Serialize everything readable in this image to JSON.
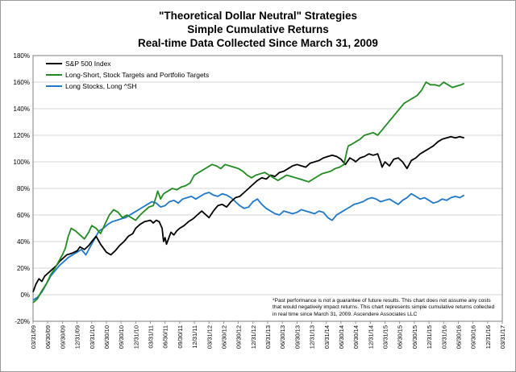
{
  "chart_data": {
    "type": "line",
    "title": "\"Theoretical Dollar Neutral\" Strategies",
    "subtitle_1": "Simple Cumulative Returns",
    "subtitle_2": "Real-time Data Collected Since March 31, 2009",
    "y_tick_labels": [
      "180%",
      "160%",
      "140%",
      "120%",
      "100%",
      "80%",
      "60%",
      "40%",
      "20%",
      "0%",
      "-20%"
    ],
    "ylim": [
      -20,
      180
    ],
    "x_tick_labels": [
      "03/31/09",
      "06/30/09",
      "09/30/09",
      "12/31/09",
      "03/31/10",
      "06/30/10",
      "09/30/10",
      "12/31/10",
      "03/31/11",
      "06/30/11",
      "09/30/11",
      "12/31/11",
      "03/31/12",
      "06/30/12",
      "09/30/12",
      "12/31/12",
      "03/31/13",
      "06/30/13",
      "09/30/13",
      "12/31/13",
      "03/31/14",
      "06/30/14",
      "09/30/14",
      "12/31/14",
      "03/31/15",
      "06/30/15",
      "09/30/15",
      "12/31/15",
      "03/31/16",
      "06/30/16",
      "09/30/16",
      "12/31/16",
      "03/31/17"
    ],
    "xlim": [
      0,
      32
    ],
    "grid": true,
    "legend_placement": "top-left",
    "series": [
      {
        "name": "S&P 500 Index",
        "color": "#000000",
        "values": [
          [
            0,
            2
          ],
          [
            0.2,
            8
          ],
          [
            0.4,
            12
          ],
          [
            0.6,
            10
          ],
          [
            0.8,
            14
          ],
          [
            1.0,
            16
          ],
          [
            1.2,
            18
          ],
          [
            1.4,
            20
          ],
          [
            1.6,
            22
          ],
          [
            1.8,
            25
          ],
          [
            2.0,
            27
          ],
          [
            2.3,
            30
          ],
          [
            2.6,
            31
          ],
          [
            3.0,
            33
          ],
          [
            3.2,
            36
          ],
          [
            3.5,
            34
          ],
          [
            3.8,
            37
          ],
          [
            4.0,
            40
          ],
          [
            4.3,
            44
          ],
          [
            4.6,
            38
          ],
          [
            5.0,
            32
          ],
          [
            5.3,
            30
          ],
          [
            5.6,
            33
          ],
          [
            5.9,
            37
          ],
          [
            6.2,
            40
          ],
          [
            6.5,
            44
          ],
          [
            6.8,
            46
          ],
          [
            7.0,
            50
          ],
          [
            7.3,
            53
          ],
          [
            7.6,
            55
          ],
          [
            8.0,
            56
          ],
          [
            8.2,
            54
          ],
          [
            8.4,
            56
          ],
          [
            8.6,
            55
          ],
          [
            8.8,
            50
          ],
          [
            8.9,
            40
          ],
          [
            9.0,
            43
          ],
          [
            9.1,
            38
          ],
          [
            9.2,
            41
          ],
          [
            9.4,
            47
          ],
          [
            9.6,
            45
          ],
          [
            9.8,
            48
          ],
          [
            10.0,
            50
          ],
          [
            10.3,
            52
          ],
          [
            10.6,
            55
          ],
          [
            10.9,
            57
          ],
          [
            11.2,
            60
          ],
          [
            11.5,
            63
          ],
          [
            11.8,
            60
          ],
          [
            12.0,
            58
          ],
          [
            12.3,
            63
          ],
          [
            12.6,
            67
          ],
          [
            12.9,
            68
          ],
          [
            13.2,
            66
          ],
          [
            13.5,
            70
          ],
          [
            13.8,
            73
          ],
          [
            14.1,
            74
          ],
          [
            14.4,
            77
          ],
          [
            14.7,
            80
          ],
          [
            15.0,
            83
          ],
          [
            15.3,
            86
          ],
          [
            15.6,
            88
          ],
          [
            15.9,
            87
          ],
          [
            16.2,
            90
          ],
          [
            16.5,
            89
          ],
          [
            16.8,
            92
          ],
          [
            17.1,
            93
          ],
          [
            17.4,
            95
          ],
          [
            17.7,
            97
          ],
          [
            18.0,
            98
          ],
          [
            18.3,
            97
          ],
          [
            18.6,
            96
          ],
          [
            18.9,
            99
          ],
          [
            19.2,
            100
          ],
          [
            19.5,
            101
          ],
          [
            19.8,
            103
          ],
          [
            20.1,
            104
          ],
          [
            20.4,
            105
          ],
          [
            20.7,
            104
          ],
          [
            21.0,
            102
          ],
          [
            21.3,
            98
          ],
          [
            21.6,
            103
          ],
          [
            21.9,
            101
          ],
          [
            22.0,
            100
          ],
          [
            22.3,
            103
          ],
          [
            22.6,
            104
          ],
          [
            22.9,
            106
          ],
          [
            23.2,
            105
          ],
          [
            23.5,
            106
          ],
          [
            23.7,
            100
          ],
          [
            23.8,
            96
          ],
          [
            24.0,
            100
          ],
          [
            24.3,
            97
          ],
          [
            24.6,
            102
          ],
          [
            24.9,
            103
          ],
          [
            25.2,
            100
          ],
          [
            25.5,
            95
          ],
          [
            25.8,
            101
          ],
          [
            26.1,
            103
          ],
          [
            26.4,
            106
          ],
          [
            26.7,
            108
          ],
          [
            27.0,
            110
          ],
          [
            27.3,
            112
          ],
          [
            27.6,
            115
          ],
          [
            27.9,
            117
          ],
          [
            28.2,
            118
          ],
          [
            28.5,
            119
          ],
          [
            28.8,
            118
          ],
          [
            29.1,
            119
          ],
          [
            29.4,
            118
          ]
        ]
      },
      {
        "name": "Long-Short, Stock Targets and Portfolio Targets",
        "color": "#228b22",
        "values": [
          [
            0,
            -6
          ],
          [
            0.3,
            -3
          ],
          [
            0.6,
            3
          ],
          [
            0.9,
            8
          ],
          [
            1.2,
            15
          ],
          [
            1.5,
            20
          ],
          [
            1.8,
            26
          ],
          [
            2.0,
            30
          ],
          [
            2.2,
            35
          ],
          [
            2.4,
            44
          ],
          [
            2.6,
            50
          ],
          [
            2.9,
            48
          ],
          [
            3.2,
            45
          ],
          [
            3.5,
            42
          ],
          [
            3.8,
            47
          ],
          [
            4.0,
            52
          ],
          [
            4.3,
            50
          ],
          [
            4.6,
            46
          ],
          [
            4.9,
            53
          ],
          [
            5.2,
            60
          ],
          [
            5.5,
            64
          ],
          [
            5.8,
            62
          ],
          [
            6.1,
            58
          ],
          [
            6.4,
            60
          ],
          [
            6.7,
            58
          ],
          [
            7.0,
            56
          ],
          [
            7.3,
            60
          ],
          [
            7.6,
            63
          ],
          [
            7.9,
            66
          ],
          [
            8.2,
            67
          ],
          [
            8.4,
            74
          ],
          [
            8.5,
            78
          ],
          [
            8.7,
            72
          ],
          [
            8.9,
            76
          ],
          [
            9.2,
            78
          ],
          [
            9.5,
            80
          ],
          [
            9.8,
            79
          ],
          [
            10.1,
            81
          ],
          [
            10.4,
            82
          ],
          [
            10.7,
            84
          ],
          [
            11.0,
            90
          ],
          [
            11.3,
            92
          ],
          [
            11.6,
            94
          ],
          [
            11.9,
            96
          ],
          [
            12.2,
            98
          ],
          [
            12.5,
            97
          ],
          [
            12.8,
            95
          ],
          [
            13.1,
            98
          ],
          [
            13.4,
            97
          ],
          [
            13.7,
            96
          ],
          [
            14.0,
            95
          ],
          [
            14.3,
            93
          ],
          [
            14.6,
            90
          ],
          [
            14.9,
            88
          ],
          [
            15.2,
            90
          ],
          [
            15.5,
            91
          ],
          [
            15.8,
            92
          ],
          [
            16.1,
            90
          ],
          [
            16.4,
            88
          ],
          [
            16.7,
            86
          ],
          [
            17.0,
            88
          ],
          [
            17.3,
            90
          ],
          [
            17.6,
            89
          ],
          [
            17.9,
            88
          ],
          [
            18.2,
            87
          ],
          [
            18.5,
            86
          ],
          [
            18.8,
            85
          ],
          [
            19.1,
            87
          ],
          [
            19.4,
            89
          ],
          [
            19.7,
            91
          ],
          [
            20.0,
            92
          ],
          [
            20.3,
            93
          ],
          [
            20.6,
            95
          ],
          [
            20.9,
            96
          ],
          [
            21.2,
            98
          ],
          [
            21.4,
            108
          ],
          [
            21.5,
            112
          ],
          [
            21.7,
            113
          ],
          [
            22.0,
            115
          ],
          [
            22.3,
            117
          ],
          [
            22.6,
            120
          ],
          [
            22.9,
            121
          ],
          [
            23.2,
            122
          ],
          [
            23.5,
            120
          ],
          [
            23.8,
            124
          ],
          [
            24.1,
            128
          ],
          [
            24.4,
            132
          ],
          [
            24.7,
            136
          ],
          [
            25.0,
            140
          ],
          [
            25.3,
            144
          ],
          [
            25.6,
            146
          ],
          [
            25.9,
            148
          ],
          [
            26.2,
            150
          ],
          [
            26.5,
            154
          ],
          [
            26.8,
            160
          ],
          [
            27.1,
            158
          ],
          [
            27.4,
            158
          ],
          [
            27.7,
            157
          ],
          [
            28.0,
            160
          ],
          [
            28.3,
            158
          ],
          [
            28.6,
            156
          ],
          [
            28.9,
            157
          ],
          [
            29.2,
            158
          ],
          [
            29.4,
            159
          ]
        ]
      },
      {
        "name": "Long Stocks, Long ^SH",
        "color": "#1f78c8",
        "values": [
          [
            0,
            -4
          ],
          [
            0.3,
            -2
          ],
          [
            0.6,
            2
          ],
          [
            0.9,
            8
          ],
          [
            1.2,
            14
          ],
          [
            1.5,
            18
          ],
          [
            1.8,
            22
          ],
          [
            2.1,
            25
          ],
          [
            2.4,
            28
          ],
          [
            2.7,
            30
          ],
          [
            3.0,
            32
          ],
          [
            3.3,
            34
          ],
          [
            3.6,
            30
          ],
          [
            3.9,
            36
          ],
          [
            4.2,
            42
          ],
          [
            4.5,
            48
          ],
          [
            4.8,
            50
          ],
          [
            5.1,
            53
          ],
          [
            5.4,
            55
          ],
          [
            5.7,
            56
          ],
          [
            6.0,
            57
          ],
          [
            6.3,
            58
          ],
          [
            6.6,
            60
          ],
          [
            6.9,
            62
          ],
          [
            7.2,
            64
          ],
          [
            7.5,
            66
          ],
          [
            7.8,
            68
          ],
          [
            8.1,
            70
          ],
          [
            8.4,
            69
          ],
          [
            8.7,
            66
          ],
          [
            9.0,
            67
          ],
          [
            9.3,
            70
          ],
          [
            9.6,
            71
          ],
          [
            9.9,
            69
          ],
          [
            10.2,
            72
          ],
          [
            10.5,
            73
          ],
          [
            10.8,
            74
          ],
          [
            11.1,
            72
          ],
          [
            11.4,
            74
          ],
          [
            11.7,
            76
          ],
          [
            12.0,
            77
          ],
          [
            12.3,
            75
          ],
          [
            12.6,
            74
          ],
          [
            12.9,
            76
          ],
          [
            13.2,
            75
          ],
          [
            13.5,
            73
          ],
          [
            13.8,
            70
          ],
          [
            14.1,
            67
          ],
          [
            14.4,
            65
          ],
          [
            14.7,
            66
          ],
          [
            15.0,
            70
          ],
          [
            15.3,
            72
          ],
          [
            15.6,
            68
          ],
          [
            15.9,
            65
          ],
          [
            16.2,
            63
          ],
          [
            16.5,
            61
          ],
          [
            16.8,
            60
          ],
          [
            17.1,
            63
          ],
          [
            17.4,
            62
          ],
          [
            17.7,
            61
          ],
          [
            18.0,
            62
          ],
          [
            18.3,
            64
          ],
          [
            18.6,
            63
          ],
          [
            18.9,
            62
          ],
          [
            19.2,
            61
          ],
          [
            19.5,
            63
          ],
          [
            19.8,
            62
          ],
          [
            20.1,
            58
          ],
          [
            20.4,
            56
          ],
          [
            20.7,
            60
          ],
          [
            21.0,
            62
          ],
          [
            21.3,
            64
          ],
          [
            21.6,
            66
          ],
          [
            21.9,
            68
          ],
          [
            22.2,
            69
          ],
          [
            22.5,
            70
          ],
          [
            22.8,
            72
          ],
          [
            23.1,
            73
          ],
          [
            23.4,
            72
          ],
          [
            23.7,
            70
          ],
          [
            24.0,
            71
          ],
          [
            24.3,
            72
          ],
          [
            24.6,
            70
          ],
          [
            24.9,
            68
          ],
          [
            25.2,
            71
          ],
          [
            25.5,
            73
          ],
          [
            25.8,
            76
          ],
          [
            26.1,
            74
          ],
          [
            26.4,
            72
          ],
          [
            26.7,
            73
          ],
          [
            27.0,
            71
          ],
          [
            27.3,
            69
          ],
          [
            27.6,
            70
          ],
          [
            27.9,
            72
          ],
          [
            28.2,
            71
          ],
          [
            28.5,
            73
          ],
          [
            28.8,
            74
          ],
          [
            29.1,
            73
          ],
          [
            29.4,
            75
          ]
        ]
      }
    ]
  },
  "footnote": "*Past performance is not a guarantee of future results.  This chart does not assume any costs that would negatively impact returns. This chart represents simple cumulative returns collected in real time since March 31, 2009. Ascendere Associates LLC"
}
